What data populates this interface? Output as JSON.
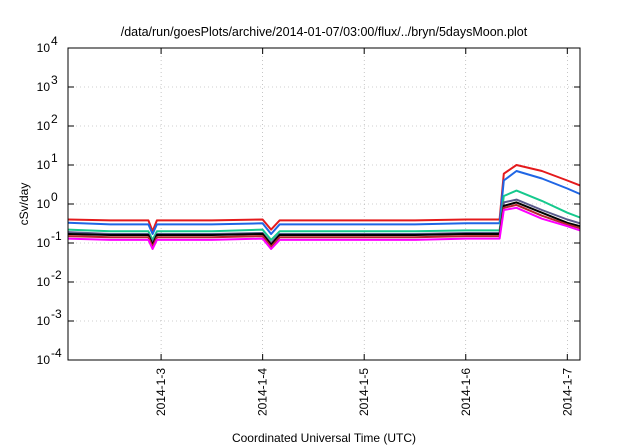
{
  "chart_data": {
    "type": "line",
    "title": "/data/run/goesPlots/archive/2014-01-07/03:00/flux/../bryn/5daysMoon.plot",
    "xlabel": "Coordinated Universal Time (UTC)",
    "ylabel": "cSv/day",
    "y_scale": "log",
    "ylim": [
      0.0001,
      10000
    ],
    "xlim": [
      "2014-01-02 02:00",
      "2014-01-07 03:00"
    ],
    "y_ticks": [
      {
        "base": "10",
        "exp": "-4"
      },
      {
        "base": "10",
        "exp": "-3"
      },
      {
        "base": "10",
        "exp": "-2"
      },
      {
        "base": "10",
        "exp": "-1"
      },
      {
        "base": "10",
        "exp": "0"
      },
      {
        "base": "10",
        "exp": "1"
      },
      {
        "base": "10",
        "exp": "2"
      },
      {
        "base": "10",
        "exp": "3"
      },
      {
        "base": "10",
        "exp": "4"
      }
    ],
    "x_ticks": [
      "2014-1-3",
      "2014-1-4",
      "2014-1-5",
      "2014-1-6",
      "2014-1-7"
    ],
    "grid": true,
    "x": [
      "2014-01-02 02:00",
      "2014-01-02 12:00",
      "2014-01-02 21:00",
      "2014-01-02 22:00",
      "2014-01-02 23:00",
      "2014-01-03 12:00",
      "2014-01-04 00:00",
      "2014-01-04 02:00",
      "2014-01-04 04:00",
      "2014-01-04 12:00",
      "2014-01-05 00:00",
      "2014-01-05 12:00",
      "2014-01-06 00:00",
      "2014-01-06 08:00",
      "2014-01-06 09:00",
      "2014-01-06 12:00",
      "2014-01-06 18:00",
      "2014-01-07 00:00",
      "2014-01-07 03:00"
    ],
    "series": [
      {
        "color": "#e41a1c",
        "values": [
          0.4,
          0.38,
          0.38,
          0.2,
          0.38,
          0.38,
          0.4,
          0.22,
          0.38,
          0.38,
          0.38,
          0.38,
          0.4,
          0.4,
          6,
          10,
          7,
          4,
          3
        ]
      },
      {
        "color": "#1f66e5",
        "values": [
          0.33,
          0.3,
          0.3,
          0.17,
          0.3,
          0.3,
          0.32,
          0.17,
          0.3,
          0.3,
          0.3,
          0.3,
          0.32,
          0.32,
          4,
          7,
          4.5,
          2.5,
          1.8
        ]
      },
      {
        "color": "#16c98d",
        "values": [
          0.22,
          0.2,
          0.2,
          0.12,
          0.2,
          0.2,
          0.22,
          0.12,
          0.2,
          0.2,
          0.2,
          0.2,
          0.21,
          0.21,
          1.6,
          2.2,
          1.2,
          0.6,
          0.45
        ]
      },
      {
        "color": "#5a5a8c",
        "values": [
          0.19,
          0.17,
          0.17,
          0.1,
          0.17,
          0.17,
          0.18,
          0.1,
          0.17,
          0.17,
          0.17,
          0.17,
          0.18,
          0.18,
          1.1,
          1.3,
          0.7,
          0.4,
          0.32
        ]
      },
      {
        "color": "#000000",
        "values": [
          0.17,
          0.16,
          0.16,
          0.09,
          0.16,
          0.16,
          0.17,
          0.09,
          0.16,
          0.16,
          0.16,
          0.16,
          0.17,
          0.17,
          0.9,
          1.1,
          0.6,
          0.33,
          0.27
        ]
      },
      {
        "color": "#b5282e",
        "values": [
          0.15,
          0.14,
          0.14,
          0.08,
          0.14,
          0.14,
          0.15,
          0.08,
          0.14,
          0.14,
          0.14,
          0.14,
          0.15,
          0.15,
          0.8,
          0.95,
          0.5,
          0.3,
          0.24
        ]
      },
      {
        "color": "#ff00ff",
        "values": [
          0.13,
          0.12,
          0.12,
          0.07,
          0.12,
          0.12,
          0.13,
          0.07,
          0.12,
          0.12,
          0.12,
          0.12,
          0.13,
          0.13,
          0.7,
          0.8,
          0.42,
          0.27,
          0.21
        ]
      }
    ]
  }
}
